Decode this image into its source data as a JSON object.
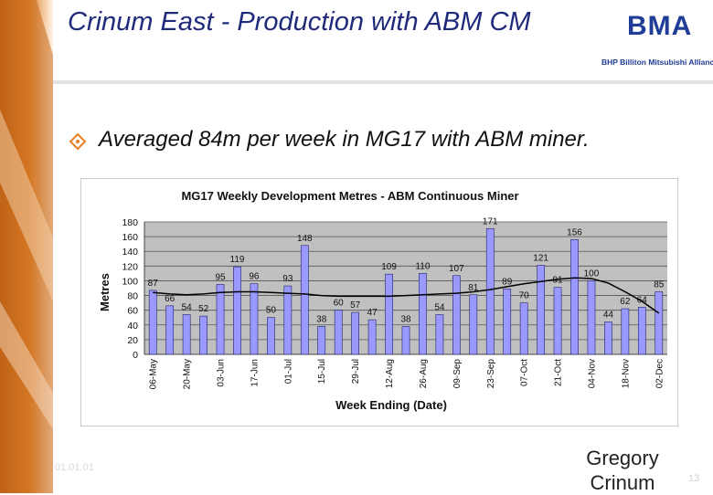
{
  "slide": {
    "title": "Crinum East - Production with ABM CM",
    "logo": {
      "mark": "BMA",
      "caption": "BHP Billiton Mitsubishi Alliance"
    },
    "bullet_icon": "diamond-bullet-icon",
    "bullet": "Averaged 84m per week in MG17 with ABM miner.",
    "footer": {
      "date": "01.01.01",
      "presenter": "Gregory Crinum",
      "page": "13"
    }
  },
  "colors": {
    "title": "#1f2a7a",
    "bar": "#9999ff",
    "plot_bg": "#c0c0c0",
    "trend": "#000000",
    "accent": "#e87e22"
  },
  "chart_data": {
    "type": "bar",
    "title": "MG17 Weekly Development Metres - ABM Continuous Miner",
    "xlabel": "Week Ending (Date)",
    "ylabel": "Metres",
    "ylim": [
      0,
      180
    ],
    "yticks": [
      0,
      20,
      40,
      60,
      80,
      100,
      120,
      140,
      160,
      180
    ],
    "grid": true,
    "values": [
      87,
      66,
      54,
      52,
      95,
      119,
      96,
      50,
      93,
      148,
      38,
      60,
      57,
      47,
      109,
      38,
      110,
      54,
      107,
      81,
      171,
      89,
      70,
      121,
      91,
      156,
      100,
      44,
      62,
      64,
      85
    ],
    "tick_labels": [
      "06-May",
      "20-May",
      "03-Jun",
      "17-Jun",
      "01-Jul",
      "15-Jul",
      "29-Jul",
      "12-Aug",
      "26-Aug",
      "09-Sep",
      "23-Sep",
      "07-Oct",
      "21-Oct",
      "04-Nov",
      "18-Nov",
      "02-Dec"
    ],
    "trend": [
      84,
      82,
      81,
      82,
      84,
      85,
      85,
      84,
      83,
      82,
      80,
      79,
      79,
      79,
      79,
      80,
      81,
      82,
      83,
      85,
      88,
      92,
      96,
      99,
      102,
      104,
      103,
      97,
      85,
      72,
      56
    ]
  }
}
